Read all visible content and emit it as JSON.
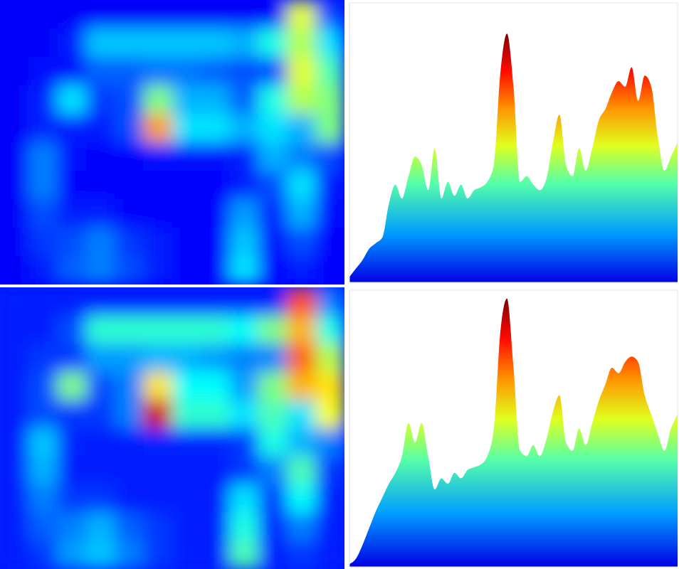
{
  "chart_data": [
    {
      "type": "heatmap",
      "tick_labels": false,
      "color_range": [
        0,
        1
      ],
      "cells": [
        [
          0.12,
          0.12,
          0.12,
          0.12,
          0.12,
          0.12,
          0.12,
          0.12,
          0.12,
          0.12,
          0.6,
          0.2
        ],
        [
          0.12,
          0.12,
          0.15,
          0.32,
          0.32,
          0.32,
          0.32,
          0.32,
          0.3,
          0.4,
          0.55,
          0.35
        ],
        [
          0.12,
          0.14,
          0.14,
          0.22,
          0.22,
          0.24,
          0.24,
          0.22,
          0.2,
          0.2,
          0.6,
          0.45
        ],
        [
          0.12,
          0.16,
          0.35,
          0.18,
          0.2,
          0.5,
          0.3,
          0.3,
          0.22,
          0.4,
          0.55,
          0.5
        ],
        [
          0.12,
          0.16,
          0.15,
          0.15,
          0.2,
          0.72,
          0.35,
          0.35,
          0.3,
          0.35,
          0.3,
          0.5
        ],
        [
          0.12,
          0.25,
          0.14,
          0.13,
          0.13,
          0.14,
          0.14,
          0.14,
          0.15,
          0.3,
          0.25,
          0.2
        ],
        [
          0.12,
          0.25,
          0.13,
          0.13,
          0.13,
          0.13,
          0.13,
          0.13,
          0.15,
          0.2,
          0.35,
          0.15
        ],
        [
          0.12,
          0.2,
          0.15,
          0.15,
          0.13,
          0.13,
          0.13,
          0.13,
          0.28,
          0.15,
          0.3,
          0.14
        ],
        [
          0.12,
          0.18,
          0.2,
          0.25,
          0.18,
          0.15,
          0.13,
          0.13,
          0.32,
          0.14,
          0.2,
          0.13
        ],
        [
          0.12,
          0.15,
          0.22,
          0.25,
          0.2,
          0.15,
          0.13,
          0.13,
          0.35,
          0.13,
          0.15,
          0.13
        ]
      ]
    },
    {
      "type": "area",
      "grid": true,
      "tick_labels": false,
      "x": [
        0,
        2,
        4,
        6,
        8,
        10,
        12,
        14,
        16,
        18,
        20,
        22,
        24,
        26,
        28,
        30,
        32,
        34,
        36,
        38,
        40,
        42,
        44,
        46,
        48,
        50,
        52,
        54,
        56,
        58,
        60,
        62,
        64,
        66,
        68,
        70,
        72,
        74,
        76,
        78,
        80,
        82,
        84,
        86,
        88,
        90,
        92,
        94,
        96,
        98,
        100
      ],
      "values": [
        2,
        5,
        8,
        12,
        14,
        16,
        28,
        35,
        30,
        38,
        45,
        42,
        33,
        48,
        30,
        36,
        31,
        35,
        30,
        33,
        34,
        36,
        42,
        75,
        89,
        70,
        36,
        38,
        35,
        33,
        37,
        50,
        60,
        42,
        38,
        48,
        40,
        48,
        58,
        62,
        68,
        72,
        70,
        77,
        65,
        74,
        70,
        52,
        40,
        45,
        50
      ],
      "xlim": [
        0,
        100
      ],
      "ylim": [
        0,
        100
      ],
      "xticks": [
        0,
        16,
        32,
        48,
        64,
        80,
        96
      ],
      "yticks": [
        0,
        10,
        20,
        30,
        40,
        50,
        60,
        70,
        80,
        90,
        100
      ]
    },
    {
      "type": "heatmap",
      "tick_labels": false,
      "color_range": [
        0,
        1
      ],
      "cells": [
        [
          0.15,
          0.15,
          0.15,
          0.15,
          0.15,
          0.15,
          0.15,
          0.15,
          0.15,
          0.15,
          0.8,
          0.25
        ],
        [
          0.15,
          0.15,
          0.2,
          0.42,
          0.42,
          0.42,
          0.42,
          0.42,
          0.38,
          0.5,
          0.7,
          0.4
        ],
        [
          0.15,
          0.18,
          0.18,
          0.28,
          0.28,
          0.3,
          0.3,
          0.28,
          0.25,
          0.25,
          0.78,
          0.55
        ],
        [
          0.15,
          0.2,
          0.5,
          0.2,
          0.25,
          0.65,
          0.38,
          0.38,
          0.28,
          0.5,
          0.7,
          0.65
        ],
        [
          0.15,
          0.2,
          0.18,
          0.18,
          0.25,
          0.92,
          0.42,
          0.42,
          0.35,
          0.45,
          0.35,
          0.62
        ],
        [
          0.15,
          0.32,
          0.16,
          0.15,
          0.15,
          0.16,
          0.16,
          0.16,
          0.18,
          0.4,
          0.3,
          0.25
        ],
        [
          0.15,
          0.3,
          0.15,
          0.15,
          0.15,
          0.15,
          0.15,
          0.15,
          0.18,
          0.25,
          0.45,
          0.18
        ],
        [
          0.15,
          0.25,
          0.18,
          0.18,
          0.15,
          0.15,
          0.15,
          0.15,
          0.35,
          0.18,
          0.38,
          0.16
        ],
        [
          0.15,
          0.22,
          0.25,
          0.3,
          0.22,
          0.18,
          0.15,
          0.15,
          0.4,
          0.16,
          0.25,
          0.15
        ],
        [
          0.15,
          0.18,
          0.28,
          0.32,
          0.25,
          0.18,
          0.15,
          0.15,
          0.45,
          0.15,
          0.18,
          0.15
        ]
      ]
    },
    {
      "type": "area",
      "grid": true,
      "tick_labels": false,
      "x": [
        0,
        2,
        4,
        6,
        8,
        10,
        12,
        14,
        16,
        18,
        20,
        22,
        24,
        26,
        28,
        30,
        32,
        34,
        36,
        38,
        40,
        42,
        44,
        46,
        48,
        50,
        52,
        54,
        56,
        58,
        60,
        62,
        64,
        66,
        68,
        70,
        72,
        74,
        76,
        78,
        80,
        82,
        84,
        86,
        88,
        90,
        92,
        94,
        96,
        98,
        100
      ],
      "values": [
        1,
        3,
        8,
        14,
        20,
        25,
        30,
        34,
        40,
        52,
        45,
        52,
        40,
        28,
        32,
        30,
        34,
        32,
        35,
        36,
        37,
        40,
        50,
        85,
        97,
        72,
        42,
        40,
        44,
        40,
        46,
        56,
        62,
        45,
        42,
        50,
        44,
        52,
        60,
        66,
        72,
        70,
        74,
        76,
        74,
        62,
        55,
        48,
        42,
        50,
        55
      ],
      "xlim": [
        0,
        100
      ],
      "ylim": [
        0,
        100
      ],
      "xticks": [
        0,
        16,
        32,
        48,
        64,
        80,
        96
      ],
      "yticks": [
        0,
        10,
        20,
        30,
        40,
        50,
        60,
        70,
        80,
        90,
        100
      ]
    }
  ]
}
